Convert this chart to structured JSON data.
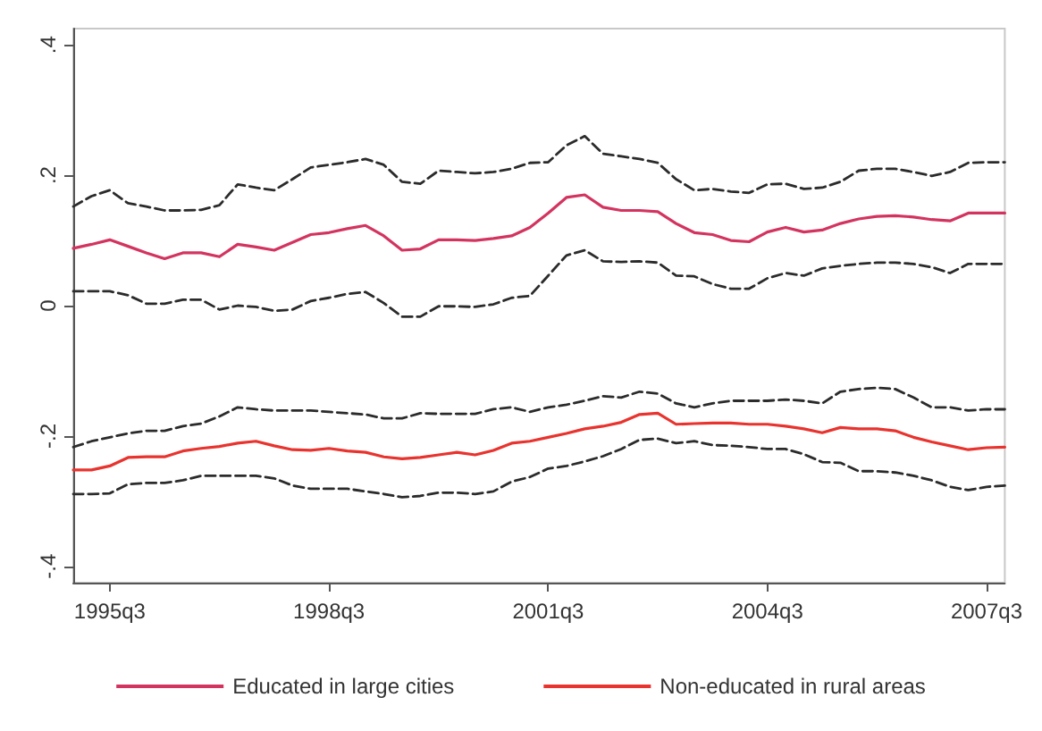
{
  "chart_data": {
    "type": "line",
    "categories": [
      null,
      null,
      "1995q3",
      null,
      null,
      null,
      null,
      null,
      null,
      null,
      null,
      null,
      null,
      null,
      "1998q3",
      null,
      null,
      null,
      null,
      null,
      null,
      null,
      null,
      null,
      null,
      null,
      "2001q3",
      null,
      null,
      null,
      null,
      null,
      null,
      null,
      null,
      null,
      null,
      null,
      "2004q3",
      null,
      null,
      null,
      null,
      null,
      null,
      null,
      null,
      null,
      null,
      null,
      "2007q3",
      null
    ],
    "ylim": [
      -0.425,
      0.425
    ],
    "yticks": [
      {
        "value": -0.4,
        "label": "-.4"
      },
      {
        "value": -0.2,
        "label": "-.2"
      },
      0,
      {
        "value": 0.2,
        "label": ".2"
      },
      {
        "value": 0.4,
        "label": ".4"
      }
    ],
    "grid": false,
    "legend": "bottom",
    "marker": "none",
    "line_style": "solid",
    "series": [
      {
        "name": "Educated in large cities",
        "color": "#d3345f",
        "values": [
          0.088,
          0.094,
          0.101,
          0.091,
          0.081,
          0.072,
          0.081,
          0.081,
          0.075,
          0.094,
          0.09,
          0.085,
          0.097,
          0.109,
          0.112,
          0.118,
          0.123,
          0.107,
          0.085,
          0.087,
          0.101,
          0.101,
          0.1,
          0.103,
          0.107,
          0.12,
          0.142,
          0.166,
          0.17,
          0.151,
          0.146,
          0.146,
          0.144,
          0.126,
          0.112,
          0.109,
          0.1,
          0.098,
          0.113,
          0.12,
          0.113,
          0.116,
          0.126,
          0.133,
          0.137,
          0.138,
          0.136,
          0.132,
          0.13,
          0.142,
          0.142,
          0.142
        ]
      },
      {
        "name": "Non-educated in rural areas",
        "color": "#e8332e",
        "values": [
          -0.252,
          -0.252,
          -0.246,
          -0.233,
          -0.232,
          -0.232,
          -0.223,
          -0.219,
          -0.216,
          -0.211,
          -0.208,
          -0.215,
          -0.221,
          -0.222,
          -0.219,
          -0.223,
          -0.225,
          -0.232,
          -0.235,
          -0.233,
          -0.229,
          -0.225,
          -0.229,
          -0.222,
          -0.211,
          -0.208,
          -0.202,
          -0.196,
          -0.189,
          -0.185,
          -0.179,
          -0.167,
          -0.165,
          -0.182,
          -0.181,
          -0.18,
          -0.18,
          -0.182,
          -0.182,
          -0.185,
          -0.189,
          -0.195,
          -0.187,
          -0.189,
          -0.189,
          -0.192,
          -0.202,
          -0.209,
          -0.215,
          -0.221,
          -0.218,
          -0.217
        ]
      },
      {
        "color": "#2b2b2b",
        "line_style": "dashed",
        "values": [
          0.152,
          0.168,
          0.177,
          0.157,
          0.152,
          0.146,
          0.146,
          0.147,
          0.154,
          0.186,
          0.181,
          0.177,
          0.194,
          0.212,
          0.216,
          0.22,
          0.225,
          0.216,
          0.19,
          0.187,
          0.207,
          0.205,
          0.203,
          0.205,
          0.21,
          0.219,
          0.22,
          0.246,
          0.26,
          0.233,
          0.229,
          0.225,
          0.219,
          0.194,
          0.177,
          0.179,
          0.175,
          0.173,
          0.186,
          0.187,
          0.179,
          0.181,
          0.19,
          0.207,
          0.21,
          0.21,
          0.205,
          0.199,
          0.205,
          0.219,
          0.22,
          0.22
        ]
      },
      {
        "color": "#2b2b2b",
        "line_style": "dashed",
        "values": [
          0.022,
          0.022,
          0.022,
          0.016,
          0.003,
          0.003,
          0.009,
          0.009,
          -0.006,
          0.0,
          -0.002,
          -0.008,
          -0.006,
          0.007,
          0.012,
          0.018,
          0.021,
          0.004,
          -0.017,
          -0.017,
          -0.001,
          -0.001,
          -0.002,
          0.002,
          0.012,
          0.015,
          0.046,
          0.077,
          0.085,
          0.068,
          0.067,
          0.068,
          0.066,
          0.046,
          0.045,
          0.033,
          0.026,
          0.026,
          0.042,
          0.05,
          0.046,
          0.057,
          0.061,
          0.064,
          0.066,
          0.066,
          0.064,
          0.059,
          0.05,
          0.064,
          0.064,
          0.064
        ]
      },
      {
        "color": "#2b2b2b",
        "line_style": "dashed",
        "values": [
          -0.217,
          -0.208,
          -0.202,
          -0.196,
          -0.192,
          -0.192,
          -0.185,
          -0.181,
          -0.17,
          -0.156,
          -0.159,
          -0.161,
          -0.161,
          -0.161,
          -0.163,
          -0.165,
          -0.167,
          -0.173,
          -0.173,
          -0.165,
          -0.166,
          -0.166,
          -0.166,
          -0.159,
          -0.156,
          -0.163,
          -0.156,
          -0.152,
          -0.146,
          -0.139,
          -0.141,
          -0.132,
          -0.135,
          -0.15,
          -0.156,
          -0.15,
          -0.146,
          -0.146,
          -0.146,
          -0.144,
          -0.146,
          -0.15,
          -0.132,
          -0.128,
          -0.126,
          -0.128,
          -0.141,
          -0.156,
          -0.156,
          -0.161,
          -0.159,
          -0.159
        ]
      },
      {
        "color": "#2b2b2b",
        "line_style": "dashed",
        "values": [
          -0.289,
          -0.289,
          -0.288,
          -0.274,
          -0.272,
          -0.272,
          -0.268,
          -0.261,
          -0.261,
          -0.261,
          -0.261,
          -0.265,
          -0.276,
          -0.281,
          -0.281,
          -0.281,
          -0.285,
          -0.289,
          -0.294,
          -0.292,
          -0.287,
          -0.287,
          -0.289,
          -0.285,
          -0.27,
          -0.263,
          -0.25,
          -0.246,
          -0.239,
          -0.231,
          -0.22,
          -0.206,
          -0.204,
          -0.211,
          -0.208,
          -0.214,
          -0.215,
          -0.217,
          -0.22,
          -0.22,
          -0.228,
          -0.24,
          -0.241,
          -0.254,
          -0.254,
          -0.256,
          -0.261,
          -0.268,
          -0.278,
          -0.283,
          -0.278,
          -0.276
        ]
      }
    ]
  }
}
